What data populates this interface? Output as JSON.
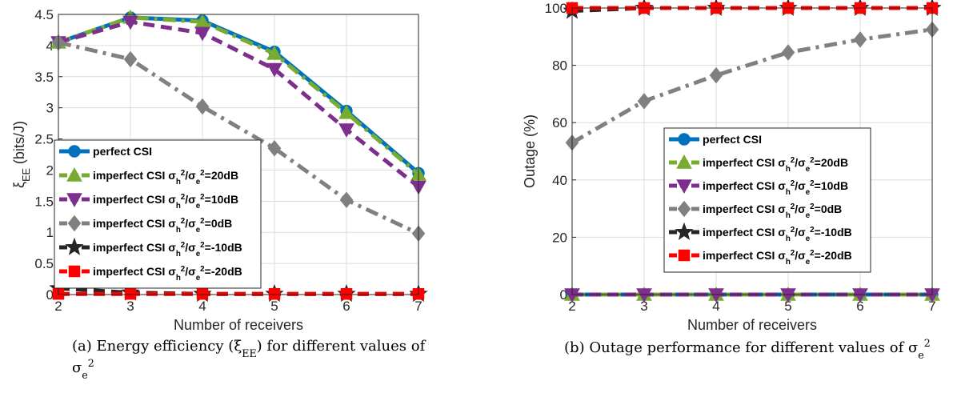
{
  "chart_data": [
    {
      "type": "line",
      "xlabel": "Number of receivers",
      "ylabel": "ξEE (bits/J)",
      "xlim": [
        2,
        7
      ],
      "ylim": [
        0,
        4.5
      ],
      "xticks": [
        "2",
        "3",
        "4",
        "5",
        "6",
        "7"
      ],
      "yticks": [
        "0",
        "0.5",
        "1",
        "1.5",
        "2",
        "2.5",
        "3",
        "3.5",
        "4",
        "4.5"
      ],
      "grid": true,
      "legend_placement": "left",
      "caption": "(a) Energy efficiency (ξEE) for different values of σe²",
      "x": [
        2,
        3,
        4,
        5,
        6,
        7
      ],
      "series": [
        {
          "name": "perfect CSI",
          "values": [
            4.05,
            4.45,
            4.4,
            3.9,
            2.95,
            1.95
          ],
          "color": "#0072BD",
          "marker": "circle",
          "dash": "solid"
        },
        {
          "name": "imperfect CSI σh²/σe²=20dB",
          "values": [
            4.05,
            4.45,
            4.38,
            3.87,
            2.92,
            1.93
          ],
          "color": "#77AC30",
          "marker": "triangle-up",
          "dash": "dashdot"
        },
        {
          "name": "imperfect CSI σh²/σe²=10dB",
          "values": [
            4.05,
            4.38,
            4.2,
            3.62,
            2.65,
            1.73
          ],
          "color": "#7E2F8E",
          "marker": "triangle-down",
          "dash": "dashed"
        },
        {
          "name": "imperfect CSI σh²/σe²=0dB",
          "values": [
            4.05,
            3.78,
            3.02,
            2.35,
            1.52,
            0.98
          ],
          "color": "#808080",
          "marker": "diamond",
          "dash": "dashdot"
        },
        {
          "name": "imperfect CSI σh²/σe²=-10dB",
          "values": [
            0.1,
            0.03,
            0.01,
            0.01,
            0.01,
            0.01
          ],
          "color": "#262626",
          "marker": "star",
          "dash": "dashed"
        },
        {
          "name": "imperfect CSI σh²/σe²=-20dB",
          "values": [
            0.01,
            0.01,
            0.01,
            0.01,
            0.01,
            0.01
          ],
          "color": "#FF0000",
          "marker": "square",
          "dash": "dashed"
        }
      ]
    },
    {
      "type": "line",
      "xlabel": "Number of receivers",
      "ylabel": "Outage (%)",
      "xlim": [
        2,
        7
      ],
      "ylim": [
        0,
        100
      ],
      "xticks": [
        "2",
        "3",
        "4",
        "5",
        "6",
        "7"
      ],
      "yticks": [
        "0",
        "20",
        "40",
        "60",
        "80",
        "100"
      ],
      "grid": true,
      "legend_placement": "right",
      "caption": "(b) Outage performance for different values of σe²",
      "x": [
        2,
        3,
        4,
        5,
        6,
        7
      ],
      "series": [
        {
          "name": "perfect CSI",
          "values": [
            0,
            0,
            0,
            0,
            0,
            0
          ],
          "color": "#0072BD",
          "marker": "circle",
          "dash": "solid"
        },
        {
          "name": "imperfect CSI σh²/σe²=20dB",
          "values": [
            0,
            0,
            0,
            0,
            0,
            0
          ],
          "color": "#77AC30",
          "marker": "triangle-up",
          "dash": "dashdot"
        },
        {
          "name": "imperfect CSI σh²/σe²=10dB",
          "values": [
            0,
            0,
            0,
            0,
            0,
            0
          ],
          "color": "#7E2F8E",
          "marker": "triangle-down",
          "dash": "dashed"
        },
        {
          "name": "imperfect CSI σh²/σe²=0dB",
          "values": [
            53,
            67.5,
            76.5,
            84.5,
            89,
            92.5
          ],
          "color": "#808080",
          "marker": "diamond",
          "dash": "dashdot"
        },
        {
          "name": "imperfect CSI σh²/σe²=-10dB",
          "values": [
            99,
            100,
            100,
            100,
            100,
            100
          ],
          "color": "#262626",
          "marker": "star",
          "dash": "dashed"
        },
        {
          "name": "imperfect CSI σh²/σe²=-20dB",
          "values": [
            100,
            100,
            100,
            100,
            100,
            100
          ],
          "color": "#FF0000",
          "marker": "square",
          "dash": "dashed"
        }
      ]
    }
  ]
}
